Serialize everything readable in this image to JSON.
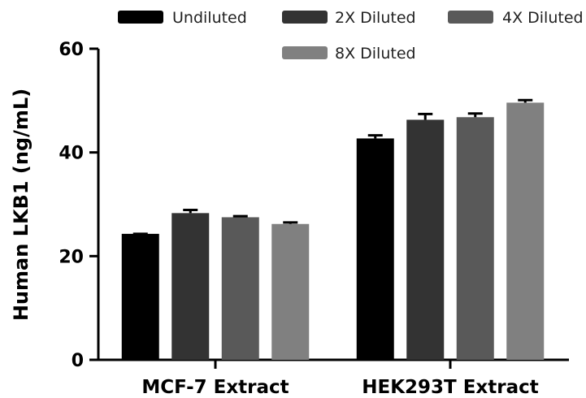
{
  "chart_data": {
    "type": "bar",
    "title": "",
    "xlabel": "",
    "ylabel": "Human LKB1 (ng/mL)",
    "ylim": [
      0,
      60
    ],
    "yticks": [
      0,
      20,
      40,
      60
    ],
    "categories": [
      "MCF-7 Extract",
      "HEK293T Extract"
    ],
    "series": [
      {
        "name": "Undiluted",
        "color": "#000000",
        "values": [
          24.3,
          42.7
        ],
        "errors": [
          0.0,
          0.6
        ]
      },
      {
        "name": "2X Diluted",
        "color": "#333333",
        "values": [
          28.3,
          46.3
        ],
        "errors": [
          0.6,
          1.1
        ]
      },
      {
        "name": "4X Diluted",
        "color": "#595959",
        "values": [
          27.5,
          46.8
        ],
        "errors": [
          0.2,
          0.7
        ]
      },
      {
        "name": "8X Diluted",
        "color": "#808080",
        "values": [
          26.2,
          49.6
        ],
        "errors": [
          0.3,
          0.5
        ]
      }
    ],
    "error_bars": true,
    "grid": false,
    "legend": "top"
  }
}
